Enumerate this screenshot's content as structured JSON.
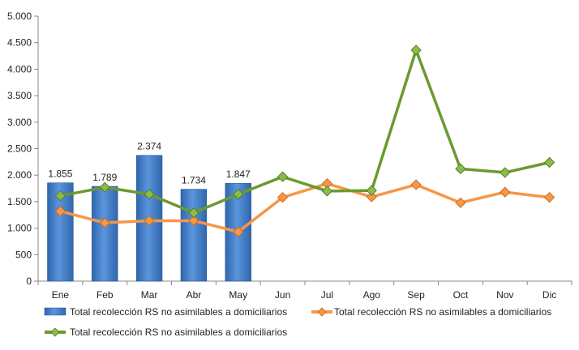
{
  "chart_data": {
    "type": "bar+line",
    "categories": [
      "Ene",
      "Feb",
      "Mar",
      "Abr",
      "May",
      "Jun",
      "Jul",
      "Ago",
      "Sep",
      "Oct",
      "Nov",
      "Dic"
    ],
    "ylim": [
      0,
      5000
    ],
    "yticks": [
      0,
      500,
      1000,
      1500,
      2000,
      2500,
      3000,
      3500,
      4000,
      4500,
      5000
    ],
    "ytick_labels": [
      "0",
      "500",
      "1.000",
      "1.500",
      "2.000",
      "2.500",
      "3.000",
      "3.500",
      "4.000",
      "4.500",
      "5.000"
    ],
    "grid": false,
    "legend_position": "bottom",
    "series": [
      {
        "name": "Total recolección RS no asimilables a domiciliarios",
        "kind": "bar",
        "color": "#3a78c4",
        "values": [
          1855,
          1789,
          2374,
          1734,
          1847,
          null,
          null,
          null,
          null,
          null,
          null,
          null
        ],
        "labels": [
          "1.855",
          "1.789",
          "2.374",
          "1.734",
          "1.847"
        ]
      },
      {
        "name": "Total recolección RS no asimilables a domiciliarios",
        "kind": "line",
        "color": "#f79646",
        "values": [
          1320,
          1100,
          1140,
          1140,
          930,
          1580,
          1840,
          1590,
          1820,
          1480,
          1680,
          1580
        ]
      },
      {
        "name": "Total recolección RS no asimilables a domiciliarios",
        "kind": "line",
        "color": "#6b9a2f",
        "values": [
          1610,
          1770,
          1640,
          1290,
          1640,
          1970,
          1700,
          1710,
          4360,
          2120,
          2050,
          2240
        ]
      }
    ]
  }
}
